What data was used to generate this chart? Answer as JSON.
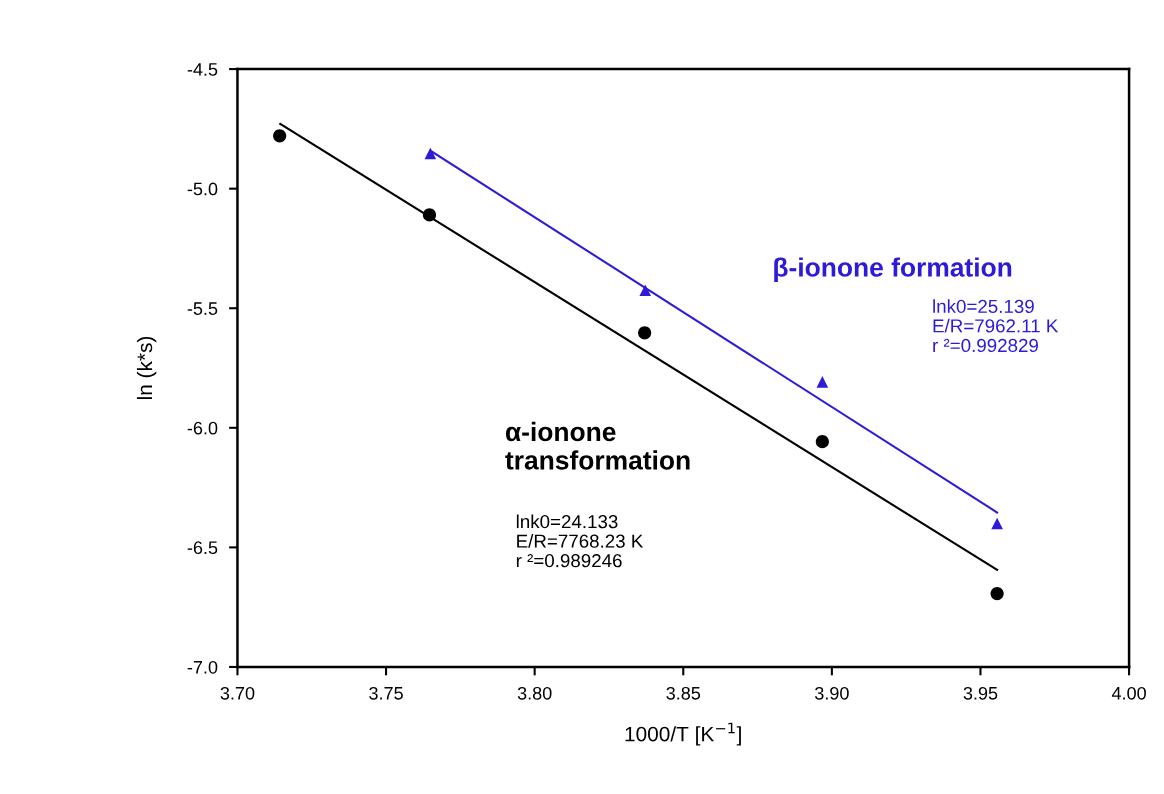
{
  "chart_data": {
    "type": "scatter",
    "xlabel": "1000/T [K$^{−1}$]",
    "ylabel": "ln (k*s)",
    "series": [
      {
        "name": "α-ionone\ntransformation",
        "marker": "circle",
        "color": "#000000",
        "x": [
          3.7142,
          3.7646,
          3.837,
          3.8968,
          3.9556
        ],
        "values": [
          -4.779,
          -5.11,
          -5.603,
          -6.058,
          -6.693
        ]
      },
      {
        "type": "line",
        "color": "#000000",
        "x": [
          3.7144,
          3.9556
        ],
        "values": [
          -4.729,
          -6.594
        ]
      },
      {
        "name": "β-ionone formation",
        "marker": "triangle",
        "color": "#2d1bd8",
        "x": [
          3.7649,
          3.8372,
          3.8968,
          3.9556
        ],
        "values": [
          -4.853,
          -5.425,
          -5.808,
          -6.4
        ]
      },
      {
        "type": "line",
        "color": "#2d1bd8",
        "x": [
          3.7649,
          3.9556
        ],
        "values": [
          -4.841,
          -6.354
        ]
      }
    ],
    "annotations": [
      "lnk0=24.133\nE/R=7768.23 K\nr ²=0.989246",
      "lnk0=25.139\nE/R=7962.11 K\nr ²=0.992829"
    ],
    "xlim": [
      3.7,
      4.0
    ],
    "ylim": [
      -7.0,
      -4.5
    ],
    "xticks": [
      {
        "value": 3.7,
        "label": "3.70"
      },
      {
        "value": 3.75,
        "label": "3.75"
      },
      {
        "value": 3.8,
        "label": "3.80"
      },
      {
        "value": 3.85,
        "label": "3.85"
      },
      {
        "value": 3.9,
        "label": "3.90"
      },
      {
        "value": 3.95,
        "label": "3.95"
      },
      {
        "value": 4.0,
        "label": "4.00"
      }
    ],
    "yticks": [
      {
        "value": -4.5,
        "label": "-4.5"
      },
      {
        "value": -5.0,
        "label": "-5.0"
      },
      {
        "value": -5.5,
        "label": "-5.5"
      },
      {
        "value": -6.0,
        "label": "-6.0"
      },
      {
        "value": -6.5,
        "label": "-6.5"
      },
      {
        "value": -7.0,
        "label": "-7.0"
      }
    ],
    "grid": false,
    "legend": false
  }
}
